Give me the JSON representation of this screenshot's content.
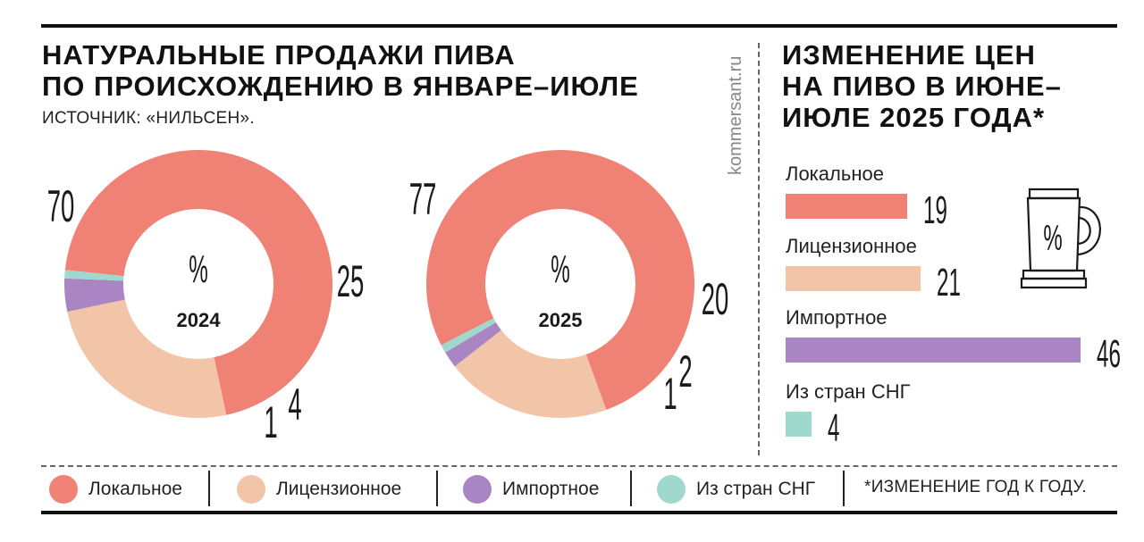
{
  "left_title": [
    "НАТУРАЛЬНЫЕ ПРОДАЖИ ПИВА",
    "ПО ПРОИСХОЖДЕНИЮ В ЯНВАРЕ–ИЮЛЕ"
  ],
  "source": "ИСТОЧНИК: «НИЛЬСЕН».",
  "watermark": "kommersant.ru",
  "right_title": [
    "ИЗМЕНЕНИЕ ЦЕН",
    "НА ПИВО В ИЮНЕ–",
    "ИЮЛЕ 2025 ГОДА*"
  ],
  "legend": [
    {
      "label": "Локальное",
      "color": "#ef8275"
    },
    {
      "label": "Лицензионное",
      "color": "#f2c4a8"
    },
    {
      "label": "Импортное",
      "color": "#a985c4"
    },
    {
      "label": "Из стран СНГ",
      "color": "#9fd8cc"
    }
  ],
  "footnote": "*ИЗМЕНЕНИЕ ГОД К ГОДУ.",
  "mug_symbol": "%",
  "chart_data": [
    {
      "type": "pie",
      "subtype": "donut",
      "title": "НАТУРАЛЬНЫЕ ПРОДАЖИ ПИВА ПО ПРОИСХОЖДЕНИЮ В ЯНВАРЕ–ИЮЛЕ",
      "center_symbol": "%",
      "center_label": "2024",
      "categories": [
        "Локальное",
        "Лицензионное",
        "Импортное",
        "Из стран СНГ"
      ],
      "values": [
        70,
        25,
        4,
        1
      ],
      "value_labels": [
        "70",
        "25",
        "4",
        "1"
      ],
      "colors": [
        "#ef8275",
        "#f2c4a8",
        "#a985c4",
        "#9fd8cc"
      ],
      "unit": "%"
    },
    {
      "type": "pie",
      "subtype": "donut",
      "title": "НАТУРАЛЬНЫЕ ПРОДАЖИ ПИВА ПО ПРОИСХОЖДЕНИЮ В ЯНВАРЕ–ИЮЛЕ",
      "center_symbol": "%",
      "center_label": "2025",
      "categories": [
        "Локальное",
        "Лицензионное",
        "Импортное",
        "Из стран СНГ"
      ],
      "values": [
        77,
        20,
        2,
        1
      ],
      "value_labels": [
        "77",
        "20",
        "2",
        "1"
      ],
      "colors": [
        "#ef8275",
        "#f2c4a8",
        "#a985c4",
        "#9fd8cc"
      ],
      "unit": "%"
    },
    {
      "type": "bar",
      "orientation": "horizontal",
      "title": "ИЗМЕНЕНИЕ ЦЕН НА ПИВО В ИЮНЕ–ИЮЛЕ 2025 ГОДА*",
      "categories": [
        "Локальное",
        "Лицензионное",
        "Импортное",
        "Из стран СНГ"
      ],
      "values": [
        19,
        21,
        46,
        4
      ],
      "value_labels": [
        "19",
        "21",
        "46",
        "4"
      ],
      "colors": [
        "#ef8275",
        "#f2c4a8",
        "#a985c4",
        "#9fd8cc"
      ],
      "unit": "%",
      "xlim": [
        0,
        46
      ]
    }
  ]
}
